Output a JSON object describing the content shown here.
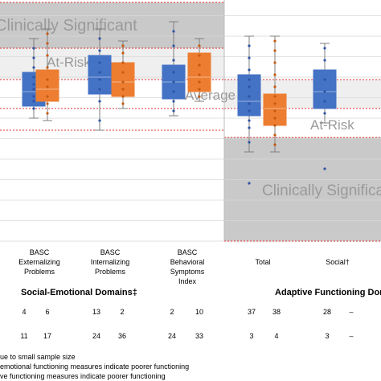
{
  "chart_data": {
    "type": "box",
    "bands": {
      "left": [
        "Clinically Significant",
        "At-Risk",
        "Average"
      ],
      "right": [
        "Average",
        "At-Risk",
        "Clinically Significant"
      ]
    },
    "categories": [
      {
        "label": [
          "BASC",
          "Externalizing",
          "Problems"
        ]
      },
      {
        "label": [
          "BASC",
          "Internalizing",
          "Problems"
        ]
      },
      {
        "label": [
          "BASC",
          "Behavioral",
          "Symptoms",
          "Index"
        ]
      },
      {
        "label": [
          "Total"
        ]
      },
      {
        "label": [
          "Social†"
        ]
      }
    ],
    "series": [
      {
        "color": "#4472c4",
        "boxes": [
          {
            "whisker_low": 51,
            "q1": 56,
            "median": 62,
            "q3": 70,
            "whisker_high": 84,
            "points": [
              55,
              58,
              60,
              63,
              65,
              68,
              72,
              76,
              80
            ]
          },
          {
            "whisker_low": 46,
            "q1": 61,
            "median": 68,
            "q3": 77,
            "whisker_high": 88,
            "points": [
              50,
              58,
              63,
              67,
              70,
              74,
              79,
              84
            ]
          },
          {
            "whisker_low": 52,
            "q1": 59,
            "median": 66,
            "q3": 73,
            "whisker_high": 91,
            "points": [
              54,
              58,
              62,
              66,
              70,
              75,
              81,
              87,
              108
            ]
          },
          {
            "whisker_low": 37,
            "q1": 52,
            "median": 58,
            "q3": 69,
            "whisker_high": 85,
            "points": [
              41,
              47,
              50,
              54,
              57,
              60,
              64,
              67,
              71,
              76,
              81,
              24
            ]
          },
          {
            "whisker_low": 49,
            "q1": 55,
            "median": 62,
            "q3": 71,
            "whisker_high": 82,
            "points": [
              53,
              58,
              62,
              67,
              75,
              80,
              30
            ]
          }
        ]
      },
      {
        "color": "#ed7d31",
        "boxes": [
          {
            "whisker_low": 50,
            "q1": 58,
            "median": 63,
            "q3": 71,
            "whisker_high": 88,
            "points": [
              53,
              57,
              60,
              64,
              67,
              72,
              77,
              82,
              86
            ]
          },
          {
            "whisker_low": 55,
            "q1": 60,
            "median": 66,
            "q3": 74,
            "whisker_high": 83,
            "points": [
              57,
              60,
              63,
              66,
              70,
              74,
              78,
              81
            ]
          },
          {
            "whisker_low": 58,
            "q1": 62,
            "median": 68,
            "q3": 78,
            "whisker_high": 84,
            "points": [
              60,
              63,
              66,
              69,
              73,
              77,
              81
            ]
          },
          {
            "whisker_low": 37,
            "q1": 48,
            "median": 55,
            "q3": 61,
            "whisker_high": 85,
            "points": [
              40,
              44,
              48,
              51,
              54,
              57,
              60,
              64,
              69,
              74,
              79,
              83
            ]
          }
        ]
      }
    ]
  },
  "domains": {
    "left_title": "Social-Emotional Domains‡",
    "right_title": "Adaptive Functioning Dom"
  },
  "table": {
    "rows": [
      [
        "4",
        "6",
        "13",
        "2",
        "2",
        "10",
        "37",
        "38",
        "28",
        "–"
      ],
      [
        "11",
        "17",
        "24",
        "36",
        "24",
        "33",
        "3",
        "4",
        "3",
        "–"
      ]
    ]
  },
  "footnotes": [
    "ue to small sample size",
    "emotional functioning measures indicate poorer functioning",
    "ve functioning measures indicate poorer functioning"
  ]
}
